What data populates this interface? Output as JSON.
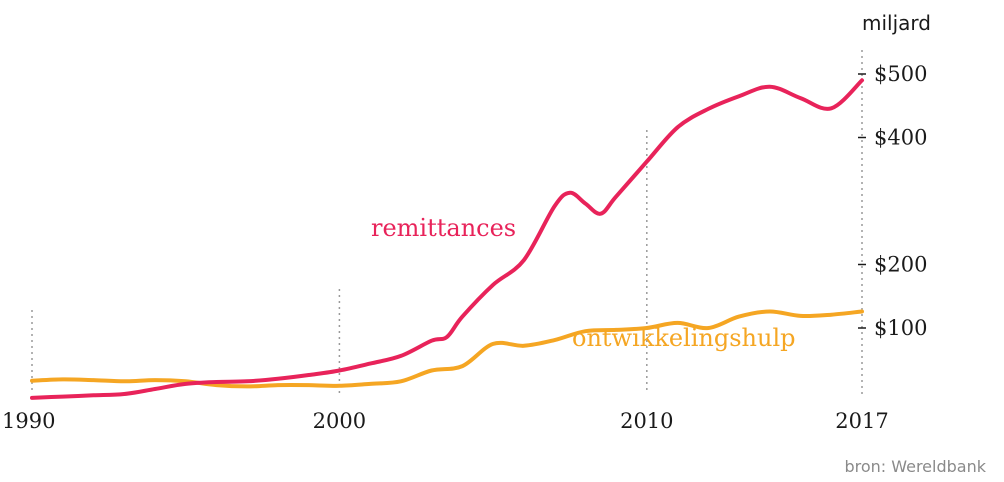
{
  "chart_data": {
    "type": "line",
    "x_unit": "year",
    "xlim": [
      1990,
      2017
    ],
    "x_ticks": [
      {
        "value": 1990,
        "label": "1990"
      },
      {
        "value": 2000,
        "label": "2000"
      },
      {
        "value": 2010,
        "label": "2010"
      },
      {
        "value": 2017,
        "label": "2017"
      }
    ],
    "y_unit_label": "miljard",
    "ylim": [
      0,
      600
    ],
    "y_ticks": [
      {
        "value": 100,
        "label": "$100"
      },
      {
        "value": 200,
        "label": "$200"
      },
      {
        "value": 400,
        "label": "$400"
      },
      {
        "value": 500,
        "label": "$500"
      }
    ],
    "grid": "vertical dotted lines at labelled years",
    "series": [
      {
        "name": "remittances",
        "color": "#e8235a",
        "x": [
          1990,
          1991,
          1992,
          1993,
          1994,
          1995,
          1996,
          1997,
          1998,
          1999,
          2000,
          2001,
          2002,
          2003,
          2003.5,
          2004,
          2005,
          2006,
          2007,
          2007.5,
          2008,
          2008.5,
          2009,
          2010,
          2011,
          2012,
          2013,
          2014,
          2015,
          2016,
          2017
        ],
        "values": [
          -10,
          -8,
          -6,
          -4,
          4,
          12,
          15,
          16,
          20,
          26,
          33,
          44,
          56,
          80,
          86,
          118,
          168,
          207,
          292,
          313,
          296,
          280,
          307,
          362,
          416,
          445,
          465,
          480,
          462,
          446,
          490
        ]
      },
      {
        "name": "ontwikkelingshulp",
        "color": "#f5a623",
        "x": [
          1990,
          1991,
          1992,
          1993,
          1994,
          1995,
          1996,
          1997,
          1998,
          1999,
          2000,
          2001,
          2002,
          2003,
          2004,
          2005,
          2006,
          2007,
          2008,
          2009,
          2010,
          2011,
          2012,
          2013,
          2014,
          2015,
          2016,
          2017
        ],
        "values": [
          17,
          19,
          18,
          16,
          18,
          16,
          10,
          8,
          10,
          10,
          9,
          12,
          16,
          33,
          40,
          75,
          72,
          81,
          95,
          97,
          100,
          108,
          100,
          118,
          126,
          119,
          121,
          126
        ]
      }
    ],
    "series_labels": {
      "remittances": "remittances",
      "ontwikkelingshulp": "ontwikkelingshulp"
    },
    "source": "bron: Wereldbank"
  }
}
